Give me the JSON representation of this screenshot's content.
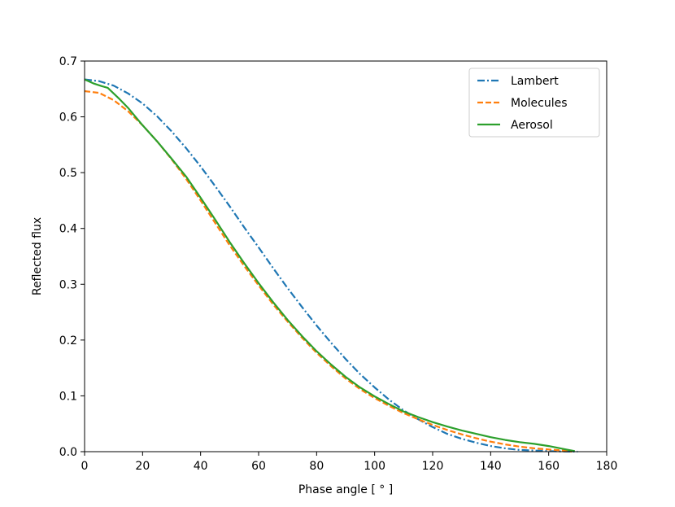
{
  "chart_data": {
    "type": "line",
    "xlabel": "Phase angle [ ° ]",
    "ylabel": "Reflected flux",
    "xlim": [
      0,
      180
    ],
    "ylim": [
      0,
      0.7
    ],
    "xticks": [
      0,
      20,
      40,
      60,
      80,
      100,
      120,
      140,
      160,
      180
    ],
    "yticks": [
      0.0,
      0.1,
      0.2,
      0.3,
      0.4,
      0.5,
      0.6,
      0.7
    ],
    "xtick_labels": [
      "0",
      "20",
      "40",
      "60",
      "80",
      "100",
      "120",
      "140",
      "160",
      "180"
    ],
    "ytick_labels": [
      "0.0",
      "0.1",
      "0.2",
      "0.3",
      "0.4",
      "0.5",
      "0.6",
      "0.7"
    ],
    "grid": false,
    "legend_position": "top-right",
    "series": [
      {
        "name": "Lambert",
        "color": "#1f77b4",
        "linestyle": "dashdot",
        "x": [
          0,
          5,
          10,
          15,
          20,
          25,
          30,
          35,
          40,
          45,
          50,
          55,
          60,
          65,
          70,
          75,
          80,
          85,
          90,
          95,
          100,
          105,
          110,
          115,
          120,
          125,
          130,
          135,
          140,
          145,
          150,
          155,
          160,
          165,
          170
        ],
        "y": [
          0.667,
          0.664,
          0.656,
          0.642,
          0.624,
          0.601,
          0.574,
          0.544,
          0.511,
          0.476,
          0.44,
          0.402,
          0.366,
          0.329,
          0.293,
          0.259,
          0.226,
          0.195,
          0.166,
          0.139,
          0.115,
          0.093,
          0.074,
          0.058,
          0.044,
          0.032,
          0.023,
          0.016,
          0.01,
          0.006,
          0.003,
          0.002,
          0.001,
          0.0003,
          0.0
        ]
      },
      {
        "name": "Molecules",
        "color": "#ff7f0e",
        "linestyle": "dashed",
        "x": [
          0,
          5,
          10,
          15,
          20,
          25,
          30,
          35,
          40,
          45,
          50,
          55,
          60,
          65,
          70,
          75,
          80,
          85,
          90,
          95,
          100,
          105,
          110,
          115,
          120,
          125,
          130,
          135,
          140,
          145,
          150,
          155,
          160,
          165,
          168
        ],
        "y": [
          0.646,
          0.643,
          0.63,
          0.61,
          0.585,
          0.556,
          0.524,
          0.489,
          0.45,
          0.41,
          0.37,
          0.333,
          0.298,
          0.264,
          0.233,
          0.204,
          0.177,
          0.153,
          0.131,
          0.112,
          0.096,
          0.082,
          0.069,
          0.058,
          0.048,
          0.039,
          0.031,
          0.024,
          0.018,
          0.013,
          0.009,
          0.006,
          0.004,
          0.002,
          0.0
        ]
      },
      {
        "name": "Aerosol",
        "color": "#2ca02c",
        "linestyle": "solid",
        "x": [
          0,
          3,
          6,
          8,
          10,
          12,
          15,
          20,
          25,
          30,
          35,
          40,
          45,
          50,
          55,
          60,
          65,
          70,
          75,
          80,
          85,
          90,
          95,
          100,
          105,
          110,
          115,
          120,
          125,
          130,
          135,
          140,
          145,
          150,
          155,
          160,
          163,
          166,
          169
        ],
        "y": [
          0.667,
          0.66,
          0.655,
          0.652,
          0.642,
          0.632,
          0.616,
          0.585,
          0.556,
          0.525,
          0.493,
          0.455,
          0.416,
          0.376,
          0.338,
          0.302,
          0.268,
          0.236,
          0.207,
          0.18,
          0.156,
          0.134,
          0.115,
          0.099,
          0.085,
          0.072,
          0.062,
          0.053,
          0.045,
          0.038,
          0.032,
          0.026,
          0.021,
          0.017,
          0.014,
          0.01,
          0.007,
          0.004,
          0.001
        ]
      }
    ]
  }
}
